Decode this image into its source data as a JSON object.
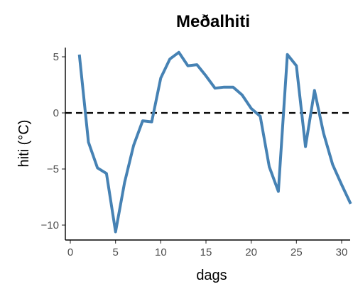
{
  "chart_data": {
    "type": "line",
    "title": "Meðalhiti",
    "xlabel": "dags",
    "ylabel": "hiti (°C)",
    "xlim": [
      0,
      31.5
    ],
    "ylim": [
      -11.4,
      6.0
    ],
    "x_ticks": [
      0,
      5,
      10,
      15,
      20,
      25,
      30
    ],
    "y_ticks": [
      -10,
      -5,
      0,
      5
    ],
    "x_tick_labels": [
      "0",
      "5",
      "10",
      "15",
      "20",
      "25",
      "30"
    ],
    "y_tick_labels": [
      "−10",
      "−5",
      "0",
      "5"
    ],
    "grid": false,
    "legend": "none",
    "reference_line": {
      "y": 0,
      "style": "dashed",
      "color": "#000000"
    },
    "series": [
      {
        "color": "#4682b4",
        "x": [
          1,
          2,
          3,
          4,
          5,
          6,
          7,
          8,
          9,
          10,
          11,
          12,
          13,
          14,
          15,
          16,
          17,
          18,
          19,
          20,
          21,
          22,
          23,
          24,
          25,
          26,
          27,
          28,
          29,
          30,
          31
        ],
        "y": [
          5.2,
          -2.6,
          -4.9,
          -5.4,
          -10.6,
          -6.2,
          -2.9,
          -0.7,
          -0.8,
          3.1,
          4.8,
          5.4,
          4.2,
          4.3,
          3.3,
          2.2,
          2.3,
          2.3,
          1.6,
          0.4,
          -0.3,
          -4.8,
          -7.0,
          5.2,
          4.2,
          -3.0,
          2.0,
          -1.8,
          -4.6,
          -6.4,
          -8.1
        ]
      }
    ]
  }
}
